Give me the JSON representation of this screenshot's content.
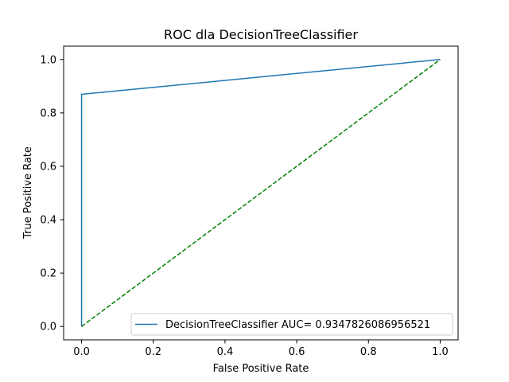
{
  "chart_data": {
    "type": "line",
    "title": "ROC dla DecisionTreeClassifier",
    "xlabel": "False Positive Rate",
    "ylabel": "True Positive Rate",
    "xlim": [
      -0.05,
      1.05
    ],
    "ylim": [
      -0.05,
      1.05
    ],
    "xticks": [
      0.0,
      0.2,
      0.4,
      0.6,
      0.8,
      1.0
    ],
    "yticks": [
      0.0,
      0.2,
      0.4,
      0.6,
      0.8,
      1.0
    ],
    "xtick_labels": [
      "0.0",
      "0.2",
      "0.4",
      "0.6",
      "0.8",
      "1.0"
    ],
    "ytick_labels": [
      "0.0",
      "0.2",
      "0.4",
      "0.6",
      "0.8",
      "1.0"
    ],
    "grid": false,
    "legend_position": "lower-right",
    "series": [
      {
        "name": "DecisionTreeClassifier AUC= 0.9347826086956521",
        "x": [
          0.0,
          0.0,
          1.0
        ],
        "y": [
          0.0,
          0.8696,
          1.0
        ],
        "color": "#1f77b4",
        "style": "solid"
      },
      {
        "x": [
          0.0,
          1.0
        ],
        "y": [
          0.0,
          1.0
        ],
        "color": "#008000",
        "style": "dashed"
      }
    ]
  }
}
